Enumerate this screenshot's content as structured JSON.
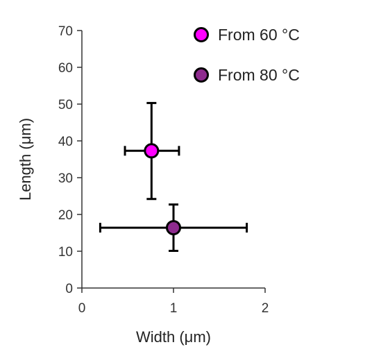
{
  "chart_data": {
    "type": "scatter",
    "title": "",
    "xlabel": "Width (μm)",
    "ylabel": "Length (μm)",
    "xlim": [
      0,
      2
    ],
    "ylim": [
      0,
      70
    ],
    "x_ticks": [
      "0",
      "1",
      "2"
    ],
    "y_ticks": [
      "0",
      "10",
      "20",
      "30",
      "40",
      "50",
      "60",
      "70"
    ],
    "legend_position": "top-right",
    "series": [
      {
        "name": "From 60 °C",
        "color": "#ff00ff",
        "points": [
          {
            "x": 0.76,
            "y": 37.3,
            "x_err_low": 0.47,
            "x_err_high": 1.06,
            "y_err_low": 24.2,
            "y_err_high": 50.3
          }
        ]
      },
      {
        "name": "From 80 °C",
        "color": "#8e2b8e",
        "points": [
          {
            "x": 1.0,
            "y": 16.4,
            "x_err_low": 0.2,
            "x_err_high": 1.8,
            "y_err_low": 10.1,
            "y_err_high": 22.7
          }
        ]
      }
    ]
  }
}
